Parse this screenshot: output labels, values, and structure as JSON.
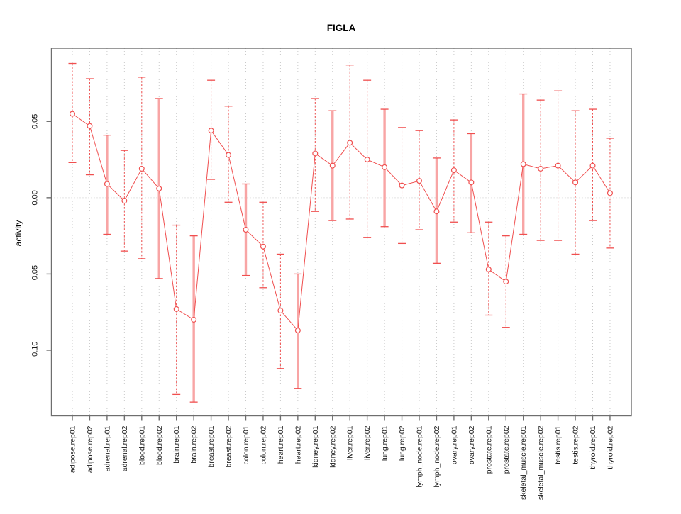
{
  "title": "FIGLA",
  "y_axis": {
    "label": "activity",
    "tick_labels": [
      "0.05",
      "0.00",
      "-0.05",
      "-0.10"
    ],
    "tick_values": [
      0.05,
      0.0,
      -0.05,
      -0.1
    ]
  },
  "colors": {
    "series_red": "#f04f4f",
    "solid_bar_pink": "#f8a5a5",
    "grid_gray": "#c9c9c9",
    "frame_gray": "#6e6e6e",
    "tick_text": "#1a1a1a",
    "background": "#ffffff"
  },
  "chart_data": {
    "type": "line",
    "subtype": "points-with-error-bars",
    "title": "FIGLA",
    "xlabel": "",
    "ylabel": "activity",
    "ylim": [
      -0.143,
      0.098
    ],
    "ytick_values": [
      0.05,
      0.0,
      -0.05,
      -0.1
    ],
    "ytick_labels": [
      "0.05",
      "0.00",
      "-0.05",
      "-0.10"
    ],
    "grid": "dotted vertical gridline at each category, dotted horizontal line at y=0",
    "legend": "none",
    "categories": [
      "adipose.rep01",
      "adipose.rep02",
      "adrenal.rep01",
      "adrenal.rep02",
      "blood.rep01",
      "blood.rep02",
      "brain.rep01",
      "brain.rep02",
      "breast.rep01",
      "breast.rep02",
      "colon.rep01",
      "colon.rep02",
      "heart.rep01",
      "heart.rep02",
      "kidney.rep01",
      "kidney.rep02",
      "liver.rep01",
      "liver.rep02",
      "lung.rep01",
      "lung.rep02",
      "lymph_node.rep01",
      "lymph_node.rep02",
      "ovary.rep01",
      "ovary.rep02",
      "prostate.rep01",
      "prostate.rep02",
      "skeletal_muscle.rep01",
      "skeletal_muscle.rep02",
      "testis.rep01",
      "testis.rep02",
      "thyroid.rep01",
      "thyroid.rep02"
    ],
    "series": [
      {
        "name": "activity",
        "values": [
          0.055,
          0.047,
          0.009,
          -0.002,
          0.019,
          0.006,
          -0.073,
          -0.08,
          0.044,
          0.028,
          -0.021,
          -0.032,
          -0.074,
          -0.087,
          0.029,
          0.021,
          0.036,
          0.025,
          0.02,
          0.008,
          0.011,
          -0.009,
          0.018,
          0.01,
          -0.047,
          -0.055,
          0.022,
          0.019,
          0.021,
          0.01,
          0.021,
          0.003
        ],
        "ci_low": [
          0.023,
          0.015,
          -0.024,
          -0.035,
          -0.04,
          -0.053,
          -0.129,
          -0.134,
          0.012,
          -0.003,
          -0.051,
          -0.059,
          -0.112,
          -0.125,
          -0.009,
          -0.015,
          -0.014,
          -0.026,
          -0.019,
          -0.03,
          -0.021,
          -0.043,
          -0.016,
          -0.023,
          -0.077,
          -0.085,
          -0.024,
          -0.028,
          -0.028,
          -0.037,
          -0.015,
          -0.033
        ],
        "ci_high": [
          0.088,
          0.078,
          0.041,
          0.031,
          0.079,
          0.065,
          -0.018,
          -0.025,
          0.077,
          0.06,
          0.009,
          -0.003,
          -0.037,
          -0.05,
          0.065,
          0.057,
          0.087,
          0.077,
          0.058,
          0.046,
          0.044,
          0.026,
          0.051,
          0.042,
          -0.016,
          -0.025,
          0.068,
          0.064,
          0.07,
          0.057,
          0.058,
          0.039
        ]
      }
    ],
    "error_bar_styles": [
      "dashed",
      "dashed",
      "solid",
      "dashed",
      "dashed",
      "solid",
      "dashed",
      "solid",
      "dashed",
      "dashed",
      "solid",
      "dashed",
      "dashed",
      "solid",
      "dashed",
      "solid",
      "dashed",
      "dashed",
      "solid",
      "dashed",
      "dashed",
      "solid",
      "dashed",
      "solid",
      "dashed",
      "dashed",
      "solid",
      "dashed",
      "dashed",
      "dashed",
      "dashed",
      "dashed"
    ]
  }
}
